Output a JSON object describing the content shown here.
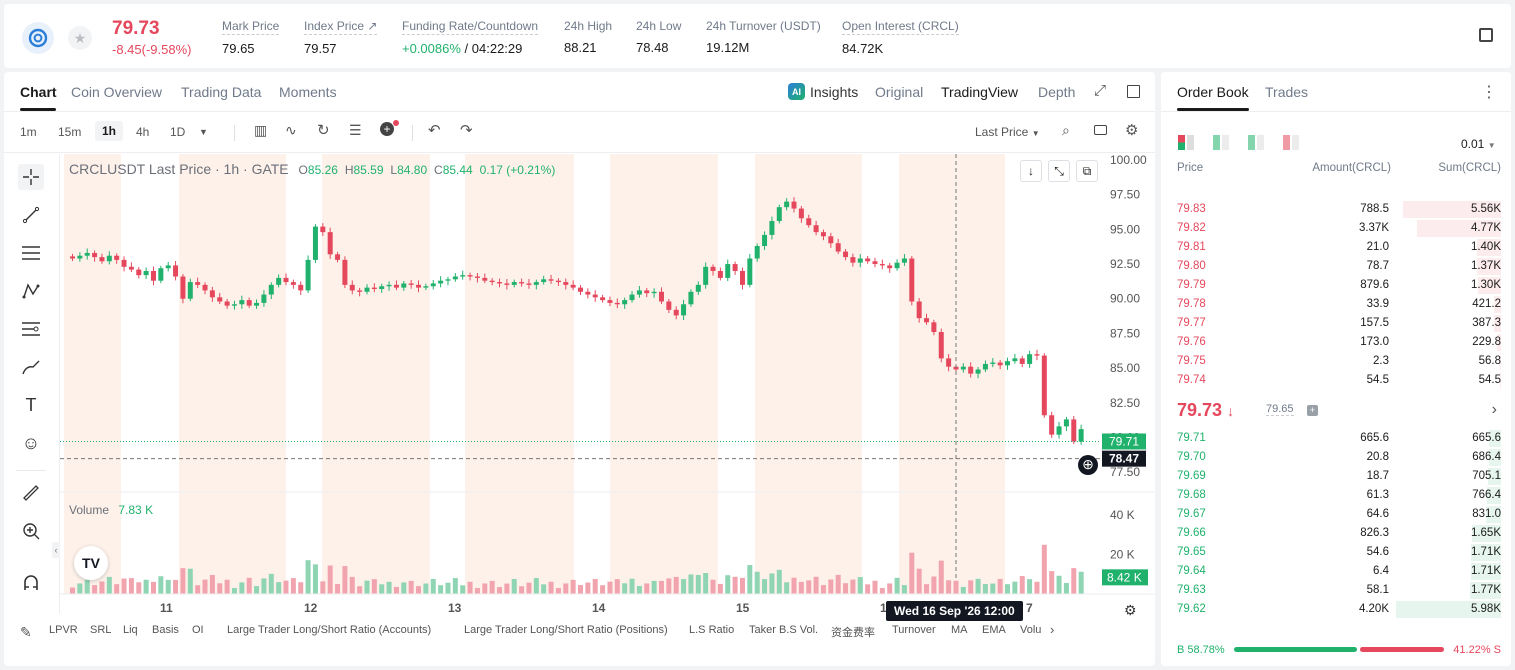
{
  "ticker": {
    "last_price": "79.73",
    "change": "-8.45(-9.58%)",
    "mark_price_label": "Mark Price",
    "mark_price": "79.65",
    "index_price_label": "Index Price ↗",
    "index_price": "79.57",
    "funding_label": "Funding Rate/Countdown",
    "funding_rate": "+0.0086%",
    "countdown": "/ 04:22:29",
    "high_label": "24h High",
    "high": "88.21",
    "low_label": "24h Low",
    "low": "78.48",
    "turnover_label": "24h Turnover (USDT)",
    "turnover": "19.12M",
    "oi_label": "Open Interest (CRCL)",
    "oi": "84.72K"
  },
  "chart_tabs": {
    "chart": "Chart",
    "coin_overview": "Coin Overview",
    "trading_data": "Trading Data",
    "moments": "Moments",
    "insights": "Insights",
    "original": "Original",
    "tradingview": "TradingView",
    "depth": "Depth"
  },
  "toolbar": {
    "intervals": [
      "1m",
      "15m",
      "1h",
      "4h",
      "1D"
    ],
    "active_interval": "1h",
    "last_price_select": "Last Price"
  },
  "legend": {
    "symbol": "CRCLUSDT Last Price · 1h · GATE",
    "o_label": "O",
    "o": "85.26",
    "h_label": "H",
    "h": "85.59",
    "l_label": "L",
    "l": "84.80",
    "c_label": "C",
    "c": "85.44",
    "chg": "0.17 (+0.21%)"
  },
  "volume_legend": {
    "label": "Volume",
    "value": "7.83 K"
  },
  "price_axis": [
    "100.00",
    "97.50",
    "95.00",
    "92.50",
    "90.00",
    "87.50",
    "85.00",
    "82.50",
    "80.00",
    "77.50"
  ],
  "price_tags": {
    "last": "79.71",
    "cursor": "78.47"
  },
  "volume_axis": [
    "40 K",
    "20 K"
  ],
  "volume_tag": "8.42 K",
  "date_axis": [
    "11",
    "12",
    "13",
    "14",
    "15",
    "16",
    "7"
  ],
  "crosshair_date": "Wed 16 Sep '26   12:00",
  "bottom_indicators": [
    "LPVR",
    "SRL",
    "Liq",
    "Basis",
    "OI",
    "Large Trader Long/Short Ratio (Accounts)",
    "Large Trader Long/Short Ratio (Positions)",
    "L.S Ratio",
    "Taker B.S Vol.",
    "资金费率",
    "Turnover",
    "MA",
    "EMA",
    "Volu"
  ],
  "chart_data": {
    "type": "candlestick",
    "symbol": "CRCLUSDT",
    "interval": "1h",
    "ylim": [
      76.5,
      100.0
    ],
    "closes": [
      92.9,
      93.1,
      93.3,
      93.0,
      92.7,
      93.1,
      92.8,
      92.3,
      92.1,
      91.7,
      92.0,
      91.3,
      92.2,
      92.4,
      91.6,
      90.0,
      91.2,
      91.0,
      90.6,
      90.1,
      89.8,
      89.5,
      89.6,
      89.9,
      89.5,
      89.7,
      90.3,
      91.0,
      91.5,
      91.2,
      91.0,
      90.6,
      92.8,
      95.2,
      94.8,
      93.2,
      92.8,
      91.0,
      90.6,
      90.5,
      90.8,
      90.7,
      90.9,
      91.0,
      90.8,
      91.1,
      91.0,
      90.8,
      90.9,
      91.1,
      91.3,
      91.4,
      91.6,
      91.7,
      91.6,
      91.5,
      91.3,
      91.2,
      91.1,
      91.0,
      91.2,
      91.1,
      91.0,
      91.2,
      91.4,
      91.3,
      91.2,
      91.0,
      90.8,
      90.5,
      90.3,
      90.1,
      89.9,
      89.7,
      89.6,
      89.9,
      90.3,
      90.6,
      90.4,
      90.5,
      89.8,
      89.2,
      88.8,
      89.6,
      90.5,
      91.0,
      92.3,
      92.0,
      91.5,
      92.5,
      92.0,
      91.0,
      92.9,
      93.8,
      94.6,
      95.6,
      96.6,
      97.0,
      96.5,
      95.8,
      95.3,
      94.8,
      94.5,
      94.0,
      93.4,
      93.0,
      92.6,
      92.9,
      92.7,
      92.5,
      92.4,
      92.2,
      92.6,
      92.9,
      89.8,
      88.6,
      88.3,
      87.6,
      85.7,
      85.1,
      84.9,
      85.1,
      84.6,
      84.9,
      85.3,
      85.4,
      85.2,
      85.5,
      85.7,
      85.3,
      86.0,
      85.9,
      81.6,
      80.2,
      80.8,
      81.3,
      79.7,
      80.6
    ],
    "volume_ylim": [
      0,
      48000
    ]
  },
  "order_book": {
    "tab_book": "Order Book",
    "tab_trades": "Trades",
    "precision": "0.01",
    "col_price": "Price",
    "col_amount": "Amount(CRCL)",
    "col_sum": "Sum(CRCL)",
    "asks": [
      {
        "price": "79.83",
        "amount": "788.5",
        "sum": "5.56K",
        "depth": 0.93
      },
      {
        "price": "79.82",
        "amount": "3.37K",
        "sum": "4.77K",
        "depth": 0.8
      },
      {
        "price": "79.81",
        "amount": "21.0",
        "sum": "1.40K",
        "depth": 0.23
      },
      {
        "price": "79.80",
        "amount": "78.7",
        "sum": "1.37K",
        "depth": 0.23
      },
      {
        "price": "79.79",
        "amount": "879.6",
        "sum": "1.30K",
        "depth": 0.22
      },
      {
        "price": "79.78",
        "amount": "33.9",
        "sum": "421.2",
        "depth": 0.07
      },
      {
        "price": "79.77",
        "amount": "157.5",
        "sum": "387.3",
        "depth": 0.065
      },
      {
        "price": "79.76",
        "amount": "173.0",
        "sum": "229.8",
        "depth": 0.04
      },
      {
        "price": "79.75",
        "amount": "2.3",
        "sum": "56.8",
        "depth": 0.01
      },
      {
        "price": "79.74",
        "amount": "54.5",
        "sum": "54.5",
        "depth": 0.01
      }
    ],
    "mid_price": "79.73",
    "mid_mark": "79.65",
    "bids": [
      {
        "price": "79.71",
        "amount": "665.6",
        "sum": "665.6",
        "depth": 0.11
      },
      {
        "price": "79.70",
        "amount": "20.8",
        "sum": "686.4",
        "depth": 0.115
      },
      {
        "price": "79.69",
        "amount": "18.7",
        "sum": "705.1",
        "depth": 0.12
      },
      {
        "price": "79.68",
        "amount": "61.3",
        "sum": "766.4",
        "depth": 0.13
      },
      {
        "price": "79.67",
        "amount": "64.6",
        "sum": "831.0",
        "depth": 0.14
      },
      {
        "price": "79.66",
        "amount": "826.3",
        "sum": "1.65K",
        "depth": 0.28
      },
      {
        "price": "79.65",
        "amount": "54.6",
        "sum": "1.71K",
        "depth": 0.29
      },
      {
        "price": "79.64",
        "amount": "6.4",
        "sum": "1.71K",
        "depth": 0.29
      },
      {
        "price": "79.63",
        "amount": "58.1",
        "sum": "1.77K",
        "depth": 0.3
      },
      {
        "price": "79.62",
        "amount": "4.20K",
        "sum": "5.98K",
        "depth": 1.0
      }
    ],
    "buy_ratio": "B 58.78%",
    "sell_ratio": "41.22% S",
    "buy_fraction": 0.5878
  },
  "colors": {
    "up": "#20b26c",
    "down": "#e5485d",
    "shade": "#fdf1ea"
  }
}
